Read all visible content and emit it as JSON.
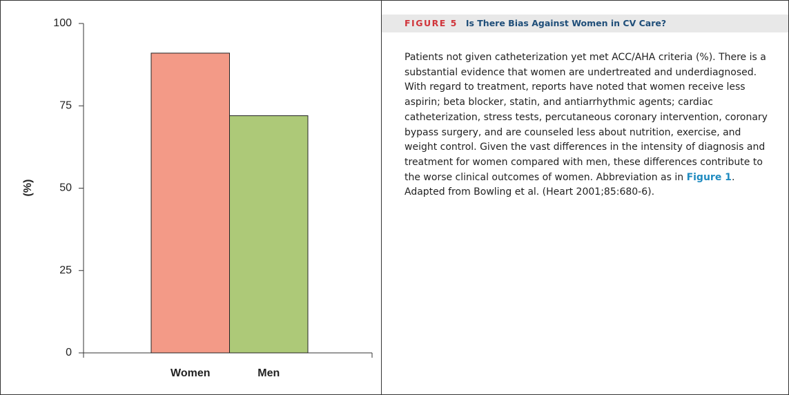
{
  "chart_data": {
    "type": "bar",
    "y_label": "(%)",
    "categories": [
      "Women",
      "Men"
    ],
    "values": [
      91,
      72
    ],
    "colors": [
      "#f39a87",
      "#adc978"
    ],
    "ylim": [
      0,
      100
    ],
    "yticks": [
      0,
      25,
      50,
      75,
      100
    ],
    "grid": false
  },
  "caption": {
    "figure_label": "FIGURE 5",
    "title": "Is There Bias Against Women in CV Care?",
    "body_before": "Patients not given catheterization yet met ACC/AHA criteria (%). There is a substantial evidence that women are undertreated and underdiagnosed. With regard to treatment, reports have noted that women receive less aspirin; beta blocker, statin, and antiarrhythmic agents; cardiac catheterization, stress tests, percutaneous coronary intervention, coronary bypass surgery, and are counseled less about nutrition, exercise, and weight control. Given the vast differences in the intensity of diagnosis and treatment for women compared with men, these differences contribute to the worse clinical outcomes of women. Abbreviation as in",
    "link": "Figure 1",
    "body_after": ". Adapted from Bowling et al. (Heart 2001;85:680-6)."
  }
}
